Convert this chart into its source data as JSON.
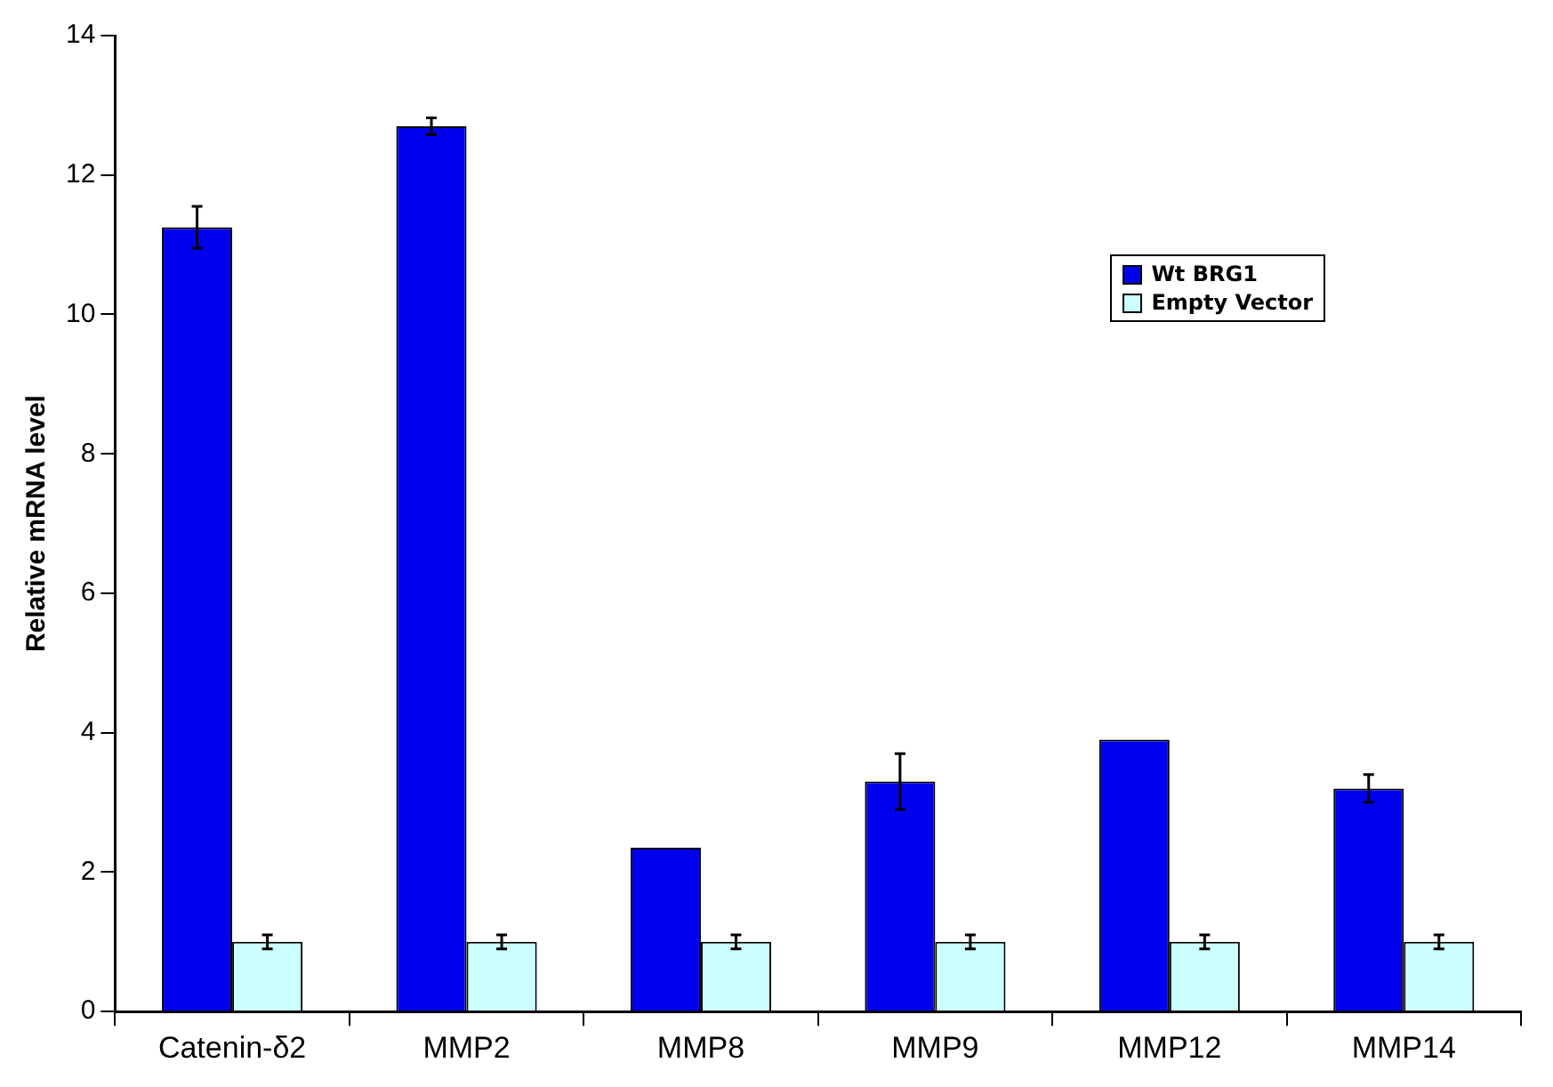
{
  "chart_data": {
    "type": "bar",
    "ylabel": "Relative mRNA level",
    "categories": [
      "Catenin-δ2",
      "MMP2",
      "MMP8",
      "MMP9",
      "MMP12",
      "MMP14"
    ],
    "series": [
      {
        "name": "Wt BRG1",
        "color": "#0000ee",
        "values": [
          11.25,
          12.7,
          2.35,
          3.3,
          3.9,
          3.2
        ],
        "errors": [
          0.3,
          0.12,
          null,
          0.4,
          null,
          0.2
        ]
      },
      {
        "name": "Empty Vector",
        "color": "#ccffff",
        "values": [
          1,
          1,
          1,
          1,
          1,
          1
        ],
        "errors": [
          0.1,
          0.1,
          0.1,
          0.1,
          0.1,
          0.1
        ]
      }
    ],
    "ylim": [
      0,
      14
    ],
    "yticks": [
      0,
      2,
      4,
      6,
      8,
      10,
      12,
      14
    ],
    "grid": false,
    "legend": "top right"
  }
}
